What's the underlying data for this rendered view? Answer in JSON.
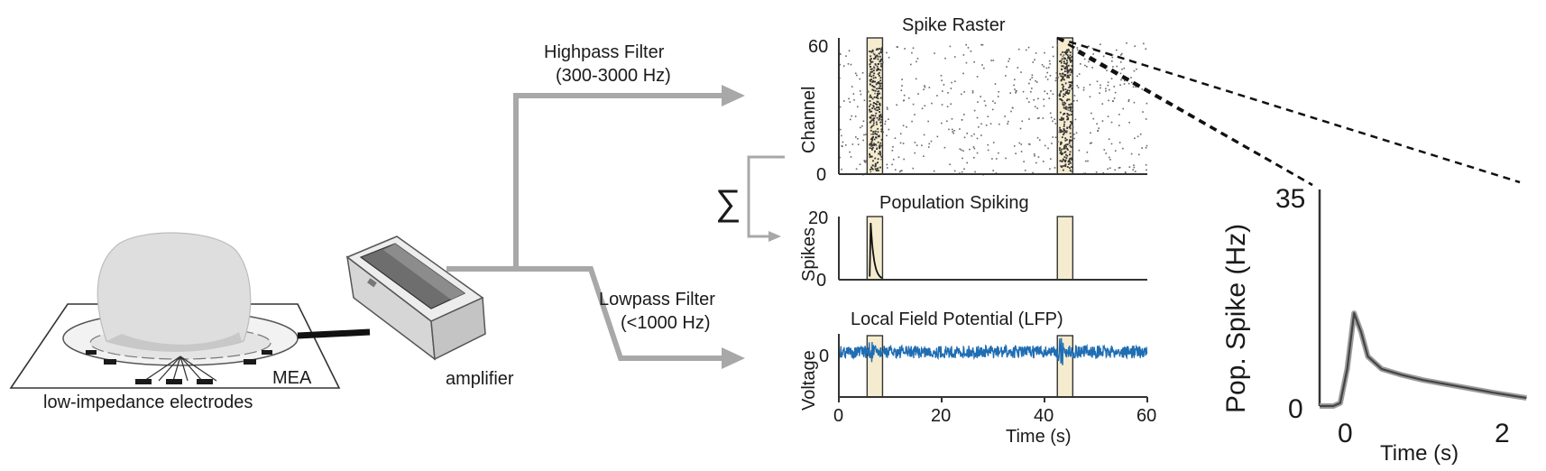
{
  "mea": {
    "label": "MEA",
    "caption": "low-impedance electrodes"
  },
  "amplifier": {
    "label": "amplifier"
  },
  "filters": {
    "highpass_title": "Highpass Filter",
    "highpass_range": "(300-3000 Hz)",
    "lowpass_title": "Lowpass Filter",
    "lowpass_range": "(<1000 Hz)"
  },
  "sum_symbol": "∑",
  "colors": {
    "lfp_trace": "#1f6db3",
    "highlight_fill": "#f5ecd0",
    "arrow_gray": "#a8a8a8",
    "tissue_gray": "#d9d9d9"
  },
  "chart_data": [
    {
      "type": "scatter",
      "title": "Spike Raster",
      "ylabel": "Channel",
      "xlim": [
        0,
        60
      ],
      "ylim": [
        0,
        64
      ],
      "yticks": [
        "0",
        "60"
      ],
      "highlight_windows": [
        [
          5.5,
          8.5
        ],
        [
          42.5,
          45.5
        ]
      ]
    },
    {
      "type": "line",
      "title": "Population Spiking",
      "ylabel": "Spikes",
      "xlim": [
        0,
        60
      ],
      "ylim": [
        0,
        20
      ],
      "yticks": [
        "0",
        "20"
      ],
      "highlight_windows": [
        [
          5.5,
          8.5
        ],
        [
          42.5,
          45.5
        ]
      ]
    },
    {
      "type": "line",
      "title": "Local Field Potential (LFP)",
      "ylabel": "Voltage",
      "xlabel": "Time (s)",
      "xlim": [
        0,
        60
      ],
      "yticks": [
        "0"
      ],
      "xticks": [
        "0",
        "20",
        "40",
        "60"
      ],
      "highlight_windows": [
        [
          5.5,
          8.5
        ],
        [
          42.5,
          45.5
        ]
      ]
    },
    {
      "type": "line",
      "ylabel": "Pop. Spike (Hz)",
      "xlabel": "Time (s)",
      "xlim": [
        -0.5,
        2.6
      ],
      "ylim": [
        0,
        35
      ],
      "yticks": [
        "0",
        "35"
      ],
      "xticks": [
        "0",
        "2"
      ],
      "series": [
        {
          "x": [
            -0.5,
            -0.3,
            -0.2,
            -0.1,
            0,
            0.1,
            0.2,
            0.4,
            0.7,
            1.0,
            1.5,
            2.0,
            2.5
          ],
          "values": [
            0,
            0,
            0.5,
            6,
            15,
            12,
            8,
            6,
            5,
            4.2,
            3.2,
            2.2,
            1.3
          ]
        }
      ]
    }
  ]
}
